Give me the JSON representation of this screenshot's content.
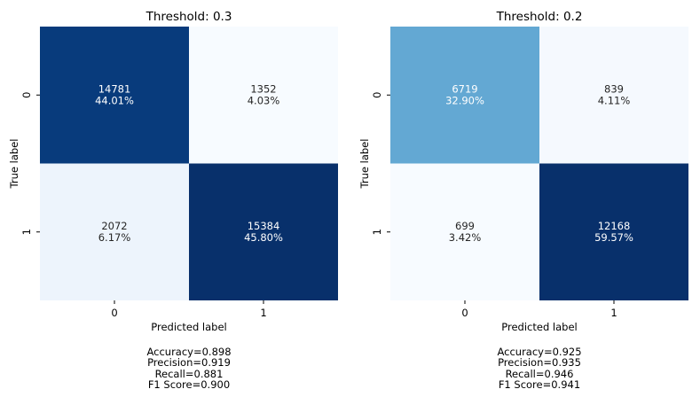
{
  "chart_data": [
    {
      "type": "heatmap",
      "title": "Threshold: 0.3",
      "xlabel": "Predicted label",
      "ylabel": "True label",
      "x_ticks": [
        "0",
        "1"
      ],
      "y_ticks": [
        "0",
        "1"
      ],
      "counts": [
        [
          14781,
          1352
        ],
        [
          2072,
          15384
        ]
      ],
      "percents": [
        [
          "44.01%",
          "4.03%"
        ],
        [
          "6.17%",
          "45.80%"
        ]
      ],
      "colormap": "Blues",
      "colorbar": false,
      "metrics": [
        "Accuracy=0.898",
        "Precision=0.919",
        "Recall=0.881",
        "F1 Score=0.900"
      ]
    },
    {
      "type": "heatmap",
      "title": "Threshold: 0.2",
      "xlabel": "Predicted label",
      "ylabel": "True label",
      "x_ticks": [
        "0",
        "1"
      ],
      "y_ticks": [
        "0",
        "1"
      ],
      "counts": [
        [
          6719,
          839
        ],
        [
          699,
          12168
        ]
      ],
      "percents": [
        [
          "32.90%",
          "4.11%"
        ],
        [
          "3.42%",
          "59.57%"
        ]
      ],
      "colormap": "Blues",
      "colorbar": false,
      "metrics": [
        "Accuracy=0.925",
        "Precision=0.935",
        "Recall=0.946",
        "F1 Score=0.941"
      ]
    }
  ]
}
